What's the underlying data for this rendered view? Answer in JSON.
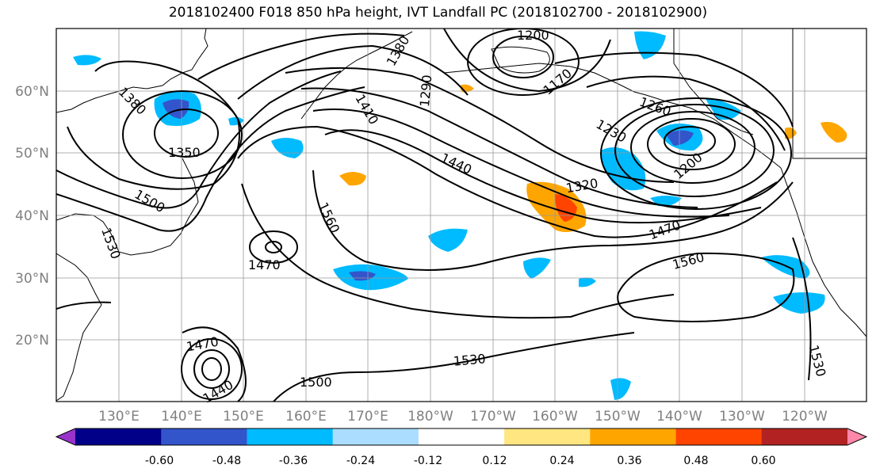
{
  "title": "2018102400 F018 850 hPa height, IVT Landfall PC (2018102700 - 2018102900)",
  "lat_labels": [
    "60°N",
    "50°N",
    "40°N",
    "30°N",
    "20°N"
  ],
  "lon_labels": [
    "130°E",
    "140°E",
    "150°E",
    "160°E",
    "170°E",
    "180°W",
    "170°W",
    "160°W",
    "150°W",
    "140°W",
    "130°W",
    "120°W"
  ],
  "contour_labels": [
    "1380",
    "1350",
    "1500",
    "1530",
    "1470",
    "1470",
    "1440",
    "1500",
    "1560",
    "1410",
    "1290",
    "1200",
    "1170",
    "1260",
    "1230",
    "1200",
    "1320",
    "1440",
    "1470",
    "1560",
    "1530",
    "1530",
    "1380"
  ],
  "colorbar": {
    "colors": [
      "#9933cc",
      "#000088",
      "#3355cc",
      "#00bbff",
      "#aaddff",
      "#ffffff",
      "#ffe680",
      "#ffa500",
      "#ff4400",
      "#b22222",
      "#ff88aa"
    ],
    "tick_labels": [
      "-0.60",
      "-0.48",
      "-0.36",
      "-0.24",
      "-0.12",
      "0.12",
      "0.24",
      "0.36",
      "0.48",
      "0.60"
    ]
  },
  "colors": {
    "contour": "#000000",
    "grid": "#999999",
    "axis_label": "#808080"
  }
}
